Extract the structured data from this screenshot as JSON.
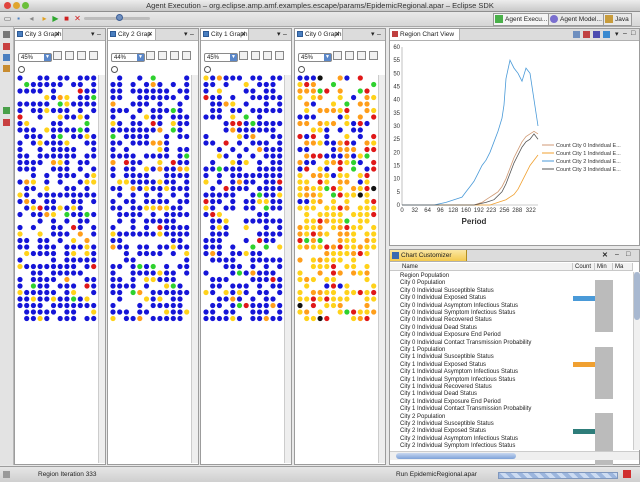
{
  "window": {
    "title": "Agent Execution – org.eclipse.amp.amf.examples.escape/params/EpidemicRegional.apar – Eclipse SDK"
  },
  "perspectives": [
    {
      "label": "Agent Execu..."
    },
    {
      "label": "Agent Model..."
    },
    {
      "label": "Java"
    }
  ],
  "colors": {
    "blue": "#1515d8",
    "yellow": "#ffd21a",
    "orange": "#ff9e1a",
    "red": "#e01818",
    "green": "#2ed12e",
    "black": "#111111",
    "series": [
      "#d09a74",
      "#f0a030",
      "#4a9ad8",
      "#555555"
    ]
  },
  "graph_panels": [
    {
      "tab_label": "City 3 Graph",
      "zoom": "45%",
      "mix": "b"
    },
    {
      "tab_label": "City 2 Grap",
      "zoom": "44%",
      "mix": "b"
    },
    {
      "tab_label": "City 1 Graph",
      "zoom": "45%",
      "mix": "b"
    },
    {
      "tab_label": "City 0 Graph",
      "zoom": "45%",
      "mix": "r"
    }
  ],
  "chart_view": {
    "tab_label": "Region Chart View"
  },
  "chart_data": {
    "type": "line",
    "xlabel": "Period",
    "ylabel": "",
    "xlim": [
      0,
      340
    ],
    "ylim": [
      0,
      60
    ],
    "yticks": [
      0,
      5,
      10,
      15,
      20,
      25,
      30,
      35,
      40,
      45,
      50,
      55,
      60
    ],
    "xticks": [
      0,
      32,
      64,
      96,
      128,
      160,
      192,
      223,
      256,
      288,
      322
    ],
    "legend_position": "right",
    "series": [
      {
        "name": "Count City 0 Individual E...",
        "color": "#d09a74",
        "x": [
          0,
          40,
          80,
          120,
          150,
          180,
          200,
          210,
          220,
          230,
          240,
          250,
          260,
          270,
          280,
          290,
          300,
          310,
          320,
          330,
          340
        ],
        "y": [
          0,
          0,
          0,
          0,
          0,
          0,
          1,
          2,
          3,
          4,
          5,
          7,
          10,
          14,
          18,
          21,
          24,
          26,
          27,
          28,
          27
        ]
      },
      {
        "name": "Count City 1 Individual E...",
        "color": "#f0a030",
        "x": [
          0,
          40,
          80,
          120,
          160,
          200,
          220,
          240,
          260,
          270,
          280,
          290,
          300,
          310,
          320,
          330,
          340
        ],
        "y": [
          0,
          0,
          0,
          0,
          0,
          0,
          0,
          1,
          2,
          3,
          4,
          6,
          9,
          12,
          15,
          17,
          19
        ]
      },
      {
        "name": "Count City 2 Individual E...",
        "color": "#4a9ad8",
        "x": [
          0,
          40,
          80,
          110,
          130,
          150,
          160,
          170,
          180,
          190,
          200,
          210,
          220,
          230,
          240,
          250,
          255,
          260,
          270,
          280,
          290,
          300,
          310,
          320,
          330,
          340
        ],
        "y": [
          0,
          0,
          0,
          1,
          2,
          3,
          5,
          7,
          9,
          12,
          15,
          17,
          20,
          24,
          28,
          33,
          38,
          48,
          55,
          52,
          50,
          47,
          52,
          50,
          40,
          30
        ]
      },
      {
        "name": "Count City 3 Individual E...",
        "color": "#555555",
        "x": [
          0,
          60,
          120,
          180,
          210,
          230,
          250,
          260,
          270,
          280,
          290,
          300,
          310,
          320,
          330,
          340
        ],
        "y": [
          0,
          0,
          0,
          0,
          1,
          2,
          5,
          8,
          12,
          16,
          19,
          22,
          24,
          25,
          27,
          25
        ]
      }
    ]
  },
  "customizer": {
    "tab_label": "Chart Customizer",
    "columns": [
      "Name",
      "Count",
      "Min",
      "Ma"
    ],
    "rows": [
      "Region Population",
      "City 0 Population",
      "City 0 Individual Susceptible Status",
      "City 0 Individual Exposed Status",
      "City 0 Individual Asymptom Infectious Status",
      "City 0 Individual Symptom Infectious Status",
      "City 0 Individual Recovered Status",
      "City 0 Individual Dead Status",
      "City 0 Individual Exposure End Period",
      "City 0 Individual Contact Transmission Probability",
      "City 1 Population",
      "City 1 Individual Susceptible Status",
      "City 1 Individual Exposed Status",
      "City 1 Individual Asymptom Infectious Status",
      "City 1 Individual Symptom Infectious Status",
      "City 1 Individual Recovered Status",
      "City 1 Individual Dead Status",
      "City 1 Individual Exposure End Period",
      "City 1 Individual Contact Transmission Probability",
      "City 2 Population",
      "City 2 Individual Susceptible Status",
      "City 2 Individual Exposed Status",
      "City 2 Individual Asymptom Infectious Status",
      "City 2 Individual Symptom Infectious Status"
    ],
    "row_colors": {
      "3": "#4a9ad8",
      "12": "#f0a030",
      "21": "#2e7d7a"
    }
  },
  "status": {
    "left": "Region Iteration 333",
    "right": "Run EpidemicRegional.apar"
  }
}
